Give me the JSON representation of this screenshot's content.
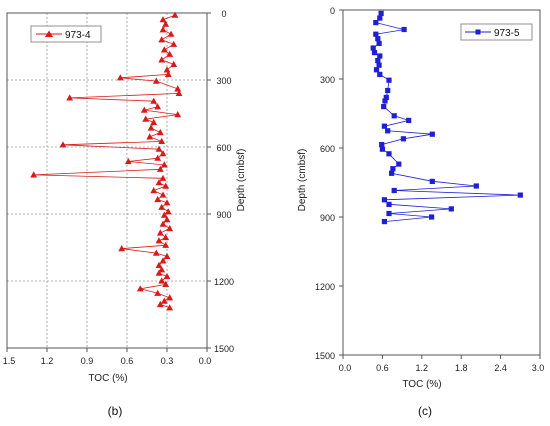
{
  "chart_data": [
    {
      "type": "line",
      "panel_label": "(b)",
      "xlabel": "TOC (%)",
      "ylabel": "Depth (cmbsf)",
      "xlim": [
        1.5,
        0.0
      ],
      "ylim": [
        0,
        1500
      ],
      "x_reversed": true,
      "y_inverted": true,
      "y_axis_side": "right",
      "x_ticks": [
        "1.5",
        "1.2",
        "0.9",
        "0.6",
        "0.3",
        "0.0"
      ],
      "y_ticks": [
        "0",
        "300",
        "600",
        "900",
        "1200",
        "1500"
      ],
      "grid": true,
      "legend_placement": "top-left",
      "series": [
        {
          "name": "973-4",
          "color": "#d91a1a",
          "marker": "triangle",
          "points": [
            {
              "x": 0.24,
              "y": 10
            },
            {
              "x": 0.33,
              "y": 30
            },
            {
              "x": 0.31,
              "y": 50
            },
            {
              "x": 0.33,
              "y": 75
            },
            {
              "x": 0.27,
              "y": 95
            },
            {
              "x": 0.34,
              "y": 120
            },
            {
              "x": 0.25,
              "y": 140
            },
            {
              "x": 0.32,
              "y": 165
            },
            {
              "x": 0.28,
              "y": 185
            },
            {
              "x": 0.34,
              "y": 210
            },
            {
              "x": 0.25,
              "y": 230
            },
            {
              "x": 0.3,
              "y": 255
            },
            {
              "x": 0.29,
              "y": 275
            },
            {
              "x": 0.65,
              "y": 290
            },
            {
              "x": 0.38,
              "y": 305
            },
            {
              "x": 0.22,
              "y": 340
            },
            {
              "x": 0.21,
              "y": 360
            },
            {
              "x": 1.03,
              "y": 380
            },
            {
              "x": 0.4,
              "y": 395
            },
            {
              "x": 0.37,
              "y": 420
            },
            {
              "x": 0.47,
              "y": 435
            },
            {
              "x": 0.22,
              "y": 455
            },
            {
              "x": 0.46,
              "y": 475
            },
            {
              "x": 0.4,
              "y": 490
            },
            {
              "x": 0.42,
              "y": 515
            },
            {
              "x": 0.35,
              "y": 535
            },
            {
              "x": 0.43,
              "y": 555
            },
            {
              "x": 0.34,
              "y": 575
            },
            {
              "x": 1.08,
              "y": 590
            },
            {
              "x": 0.36,
              "y": 610
            },
            {
              "x": 0.33,
              "y": 630
            },
            {
              "x": 0.37,
              "y": 650
            },
            {
              "x": 0.59,
              "y": 665
            },
            {
              "x": 0.32,
              "y": 680
            },
            {
              "x": 0.35,
              "y": 700
            },
            {
              "x": 1.3,
              "y": 725
            },
            {
              "x": 0.33,
              "y": 740
            },
            {
              "x": 0.36,
              "y": 760
            },
            {
              "x": 0.31,
              "y": 775
            },
            {
              "x": 0.4,
              "y": 795
            },
            {
              "x": 0.33,
              "y": 815
            },
            {
              "x": 0.37,
              "y": 835
            },
            {
              "x": 0.3,
              "y": 850
            },
            {
              "x": 0.34,
              "y": 870
            },
            {
              "x": 0.29,
              "y": 890
            },
            {
              "x": 0.32,
              "y": 905
            },
            {
              "x": 0.3,
              "y": 925
            },
            {
              "x": 0.33,
              "y": 945
            },
            {
              "x": 0.28,
              "y": 965
            },
            {
              "x": 0.35,
              "y": 985
            },
            {
              "x": 0.31,
              "y": 1005
            },
            {
              "x": 0.36,
              "y": 1020
            },
            {
              "x": 0.31,
              "y": 1040
            },
            {
              "x": 0.64,
              "y": 1055
            },
            {
              "x": 0.38,
              "y": 1075
            },
            {
              "x": 0.3,
              "y": 1090
            },
            {
              "x": 0.33,
              "y": 1110
            },
            {
              "x": 0.36,
              "y": 1130
            },
            {
              "x": 0.34,
              "y": 1150
            },
            {
              "x": 0.36,
              "y": 1165
            },
            {
              "x": 0.3,
              "y": 1180
            },
            {
              "x": 0.34,
              "y": 1200
            },
            {
              "x": 0.31,
              "y": 1215
            },
            {
              "x": 0.5,
              "y": 1235
            },
            {
              "x": 0.37,
              "y": 1255
            },
            {
              "x": 0.28,
              "y": 1275
            },
            {
              "x": 0.32,
              "y": 1290
            },
            {
              "x": 0.35,
              "y": 1305
            },
            {
              "x": 0.28,
              "y": 1320
            }
          ]
        }
      ]
    },
    {
      "type": "line",
      "panel_label": "(c)",
      "xlabel": "TOC (%)",
      "ylabel": "Depth (cmbsf)",
      "xlim": [
        0.0,
        3.0
      ],
      "ylim": [
        0,
        1500
      ],
      "x_reversed": false,
      "y_inverted": true,
      "y_axis_side": "left",
      "x_ticks": [
        "0.0",
        "0.6",
        "1.2",
        "1.8",
        "2.4",
        "3.0"
      ],
      "y_ticks": [
        "0",
        "300",
        "600",
        "900",
        "1200",
        "1500"
      ],
      "grid": false,
      "legend_placement": "top-right",
      "series": [
        {
          "name": "973-5",
          "color": "#1f1fd6",
          "marker": "square",
          "points": [
            {
              "x": 0.58,
              "y": 15
            },
            {
              "x": 0.56,
              "y": 35
            },
            {
              "x": 0.5,
              "y": 55
            },
            {
              "x": 0.93,
              "y": 85
            },
            {
              "x": 0.5,
              "y": 105
            },
            {
              "x": 0.53,
              "y": 125
            },
            {
              "x": 0.55,
              "y": 145
            },
            {
              "x": 0.46,
              "y": 165
            },
            {
              "x": 0.48,
              "y": 185
            },
            {
              "x": 0.56,
              "y": 200
            },
            {
              "x": 0.53,
              "y": 220
            },
            {
              "x": 0.55,
              "y": 240
            },
            {
              "x": 0.51,
              "y": 260
            },
            {
              "x": 0.56,
              "y": 280
            },
            {
              "x": 0.7,
              "y": 305
            },
            {
              "x": 0.68,
              "y": 350
            },
            {
              "x": 0.66,
              "y": 380
            },
            {
              "x": 0.64,
              "y": 395
            },
            {
              "x": 0.62,
              "y": 420
            },
            {
              "x": 0.78,
              "y": 460
            },
            {
              "x": 1.0,
              "y": 480
            },
            {
              "x": 0.63,
              "y": 505
            },
            {
              "x": 0.68,
              "y": 525
            },
            {
              "x": 1.36,
              "y": 540
            },
            {
              "x": 0.92,
              "y": 560
            },
            {
              "x": 0.59,
              "y": 585
            },
            {
              "x": 0.6,
              "y": 605
            },
            {
              "x": 0.7,
              "y": 625
            },
            {
              "x": 0.85,
              "y": 670
            },
            {
              "x": 0.76,
              "y": 690
            },
            {
              "x": 0.74,
              "y": 710
            },
            {
              "x": 1.36,
              "y": 745
            },
            {
              "x": 2.03,
              "y": 765
            },
            {
              "x": 0.78,
              "y": 785
            },
            {
              "x": 2.7,
              "y": 805
            },
            {
              "x": 0.63,
              "y": 825
            },
            {
              "x": 0.7,
              "y": 845
            },
            {
              "x": 1.65,
              "y": 865
            },
            {
              "x": 0.7,
              "y": 885
            },
            {
              "x": 1.35,
              "y": 900
            },
            {
              "x": 0.63,
              "y": 920
            }
          ]
        }
      ]
    }
  ]
}
